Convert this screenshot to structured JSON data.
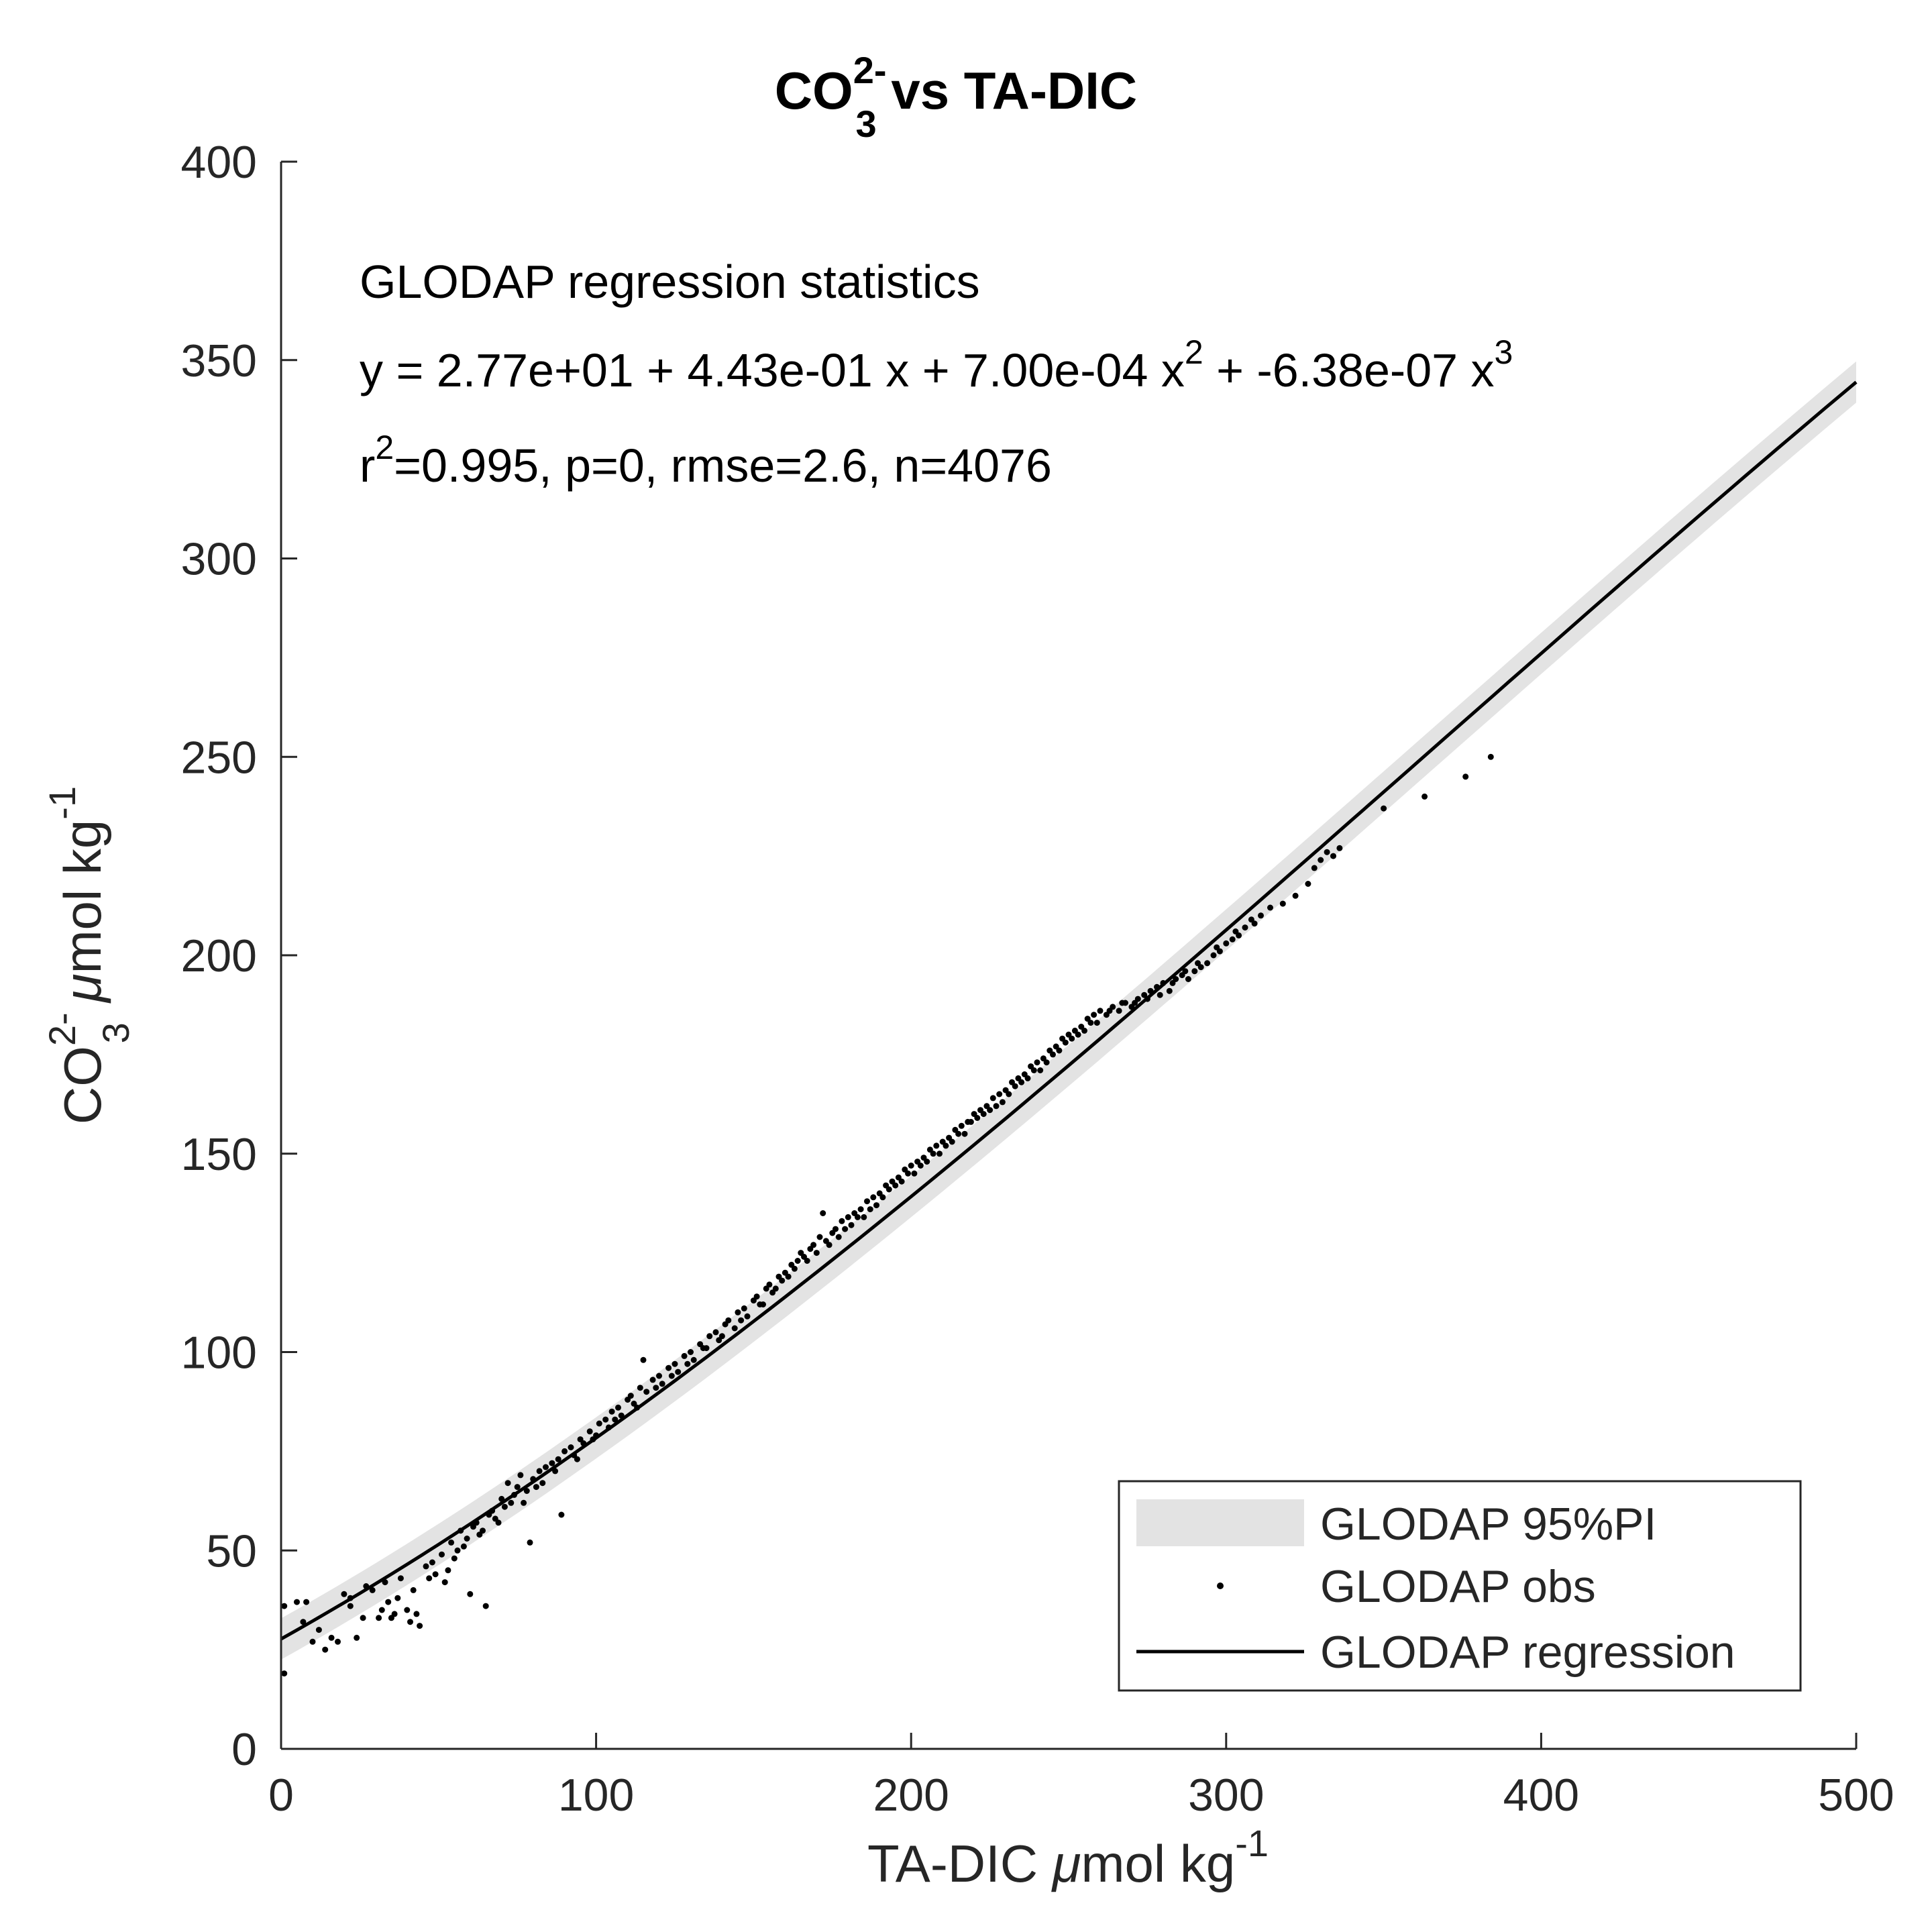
{
  "chart_data": {
    "type": "scatter",
    "title": {
      "prefix": "CO",
      "sub": "3",
      "sup": "2-",
      "suffix": " vs TA-DIC"
    },
    "xlabel": {
      "main": "TA-DIC ",
      "mu": "μ",
      "rest": "mol kg",
      "sup": "-1"
    },
    "ylabel": {
      "prefix": "CO",
      "sub": "3",
      "sup": "2-",
      "mu": "μ",
      "rest": "mol kg",
      "sup2": "-1"
    },
    "xlim": [
      0,
      500
    ],
    "ylim": [
      0,
      400
    ],
    "xticks": [
      0,
      100,
      200,
      300,
      400,
      500
    ],
    "yticks": [
      0,
      50,
      100,
      150,
      200,
      250,
      300,
      350,
      400
    ],
    "xtick_labels": [
      "0",
      "100",
      "200",
      "300",
      "400",
      "500"
    ],
    "ytick_labels": [
      "0",
      "50",
      "100",
      "150",
      "200",
      "250",
      "300",
      "350",
      "400"
    ],
    "grid": false,
    "annotation": {
      "line1": "GLODAP regression statistics",
      "line2_a": "y = 2.77e+01 + 4.43e-01 x + 7.00e-04 x",
      "line2_sup1": "2",
      "line2_b": " + -6.38e-07 x",
      "line2_sup2": "3",
      "line3_a": "r",
      "line3_sup": "2",
      "line3_b": "=0.995, p=0, rmse=2.6, n=4076"
    },
    "regression": {
      "coefficients": [
        27.7,
        0.443,
        0.0007,
        -6.38e-07
      ],
      "x_range": [
        0,
        500
      ],
      "pi_halfwidth": 5.2
    },
    "legend": {
      "position": "bottom-right",
      "entries": [
        "GLODAP 95%PI",
        "GLODAP obs",
        "GLODAP regression"
      ]
    },
    "series": [
      {
        "name": "GLODAP obs",
        "points": [
          [
            1,
            36
          ],
          [
            1,
            19
          ],
          [
            5,
            37
          ],
          [
            7,
            32
          ],
          [
            8,
            37
          ],
          [
            10,
            27
          ],
          [
            12,
            30
          ],
          [
            14,
            25
          ],
          [
            16,
            28
          ],
          [
            18,
            27
          ],
          [
            20,
            39
          ],
          [
            22,
            38
          ],
          [
            24,
            28
          ],
          [
            27,
            41
          ],
          [
            29,
            40
          ],
          [
            31,
            33
          ],
          [
            33,
            42
          ],
          [
            34,
            37
          ],
          [
            35,
            33
          ],
          [
            36,
            34
          ],
          [
            38,
            43
          ],
          [
            40,
            35
          ],
          [
            41,
            32
          ],
          [
            43,
            34
          ],
          [
            44,
            31
          ],
          [
            46,
            46
          ],
          [
            48,
            47
          ],
          [
            49,
            44
          ],
          [
            51,
            49
          ],
          [
            52,
            42
          ],
          [
            54,
            52
          ],
          [
            55,
            48
          ],
          [
            57,
            55
          ],
          [
            58,
            51
          ],
          [
            59,
            53
          ],
          [
            60,
            39
          ],
          [
            61,
            56
          ],
          [
            62,
            57
          ],
          [
            63,
            54
          ],
          [
            65,
            36
          ],
          [
            66,
            59
          ],
          [
            67,
            60
          ],
          [
            68,
            58
          ],
          [
            70,
            63
          ],
          [
            71,
            61
          ],
          [
            72,
            67
          ],
          [
            73,
            62
          ],
          [
            74,
            64
          ],
          [
            75,
            66
          ],
          [
            76,
            69
          ],
          [
            77,
            62
          ],
          [
            78,
            65
          ],
          [
            79,
            52
          ],
          [
            80,
            68
          ],
          [
            82,
            70
          ],
          [
            83,
            67
          ],
          [
            84,
            71
          ],
          [
            86,
            72
          ],
          [
            88,
            73
          ],
          [
            89,
            59
          ],
          [
            90,
            75
          ],
          [
            92,
            76
          ],
          [
            93,
            74
          ],
          [
            95,
            78
          ],
          [
            96,
            77
          ],
          [
            98,
            80
          ],
          [
            99,
            78
          ],
          [
            101,
            82
          ],
          [
            103,
            83
          ],
          [
            104,
            81
          ],
          [
            105,
            85
          ],
          [
            107,
            86
          ],
          [
            108,
            84
          ],
          [
            110,
            88
          ],
          [
            111,
            89
          ],
          [
            112,
            87
          ],
          [
            114,
            91
          ],
          [
            115,
            98
          ],
          [
            116,
            90
          ],
          [
            118,
            93
          ],
          [
            120,
            94
          ],
          [
            121,
            92
          ],
          [
            123,
            96
          ],
          [
            125,
            97
          ],
          [
            126,
            95
          ],
          [
            128,
            99
          ],
          [
            130,
            100
          ],
          [
            131,
            98
          ],
          [
            133,
            102
          ],
          [
            134,
            101
          ],
          [
            136,
            104
          ],
          [
            138,
            105
          ],
          [
            139,
            103
          ],
          [
            141,
            107
          ],
          [
            142,
            108
          ],
          [
            144,
            106
          ],
          [
            145,
            110
          ],
          [
            147,
            111
          ],
          [
            148,
            109
          ],
          [
            150,
            113
          ],
          [
            151,
            114
          ],
          [
            152,
            112
          ],
          [
            154,
            116
          ],
          [
            155,
            117
          ],
          [
            156,
            115
          ],
          [
            158,
            119
          ],
          [
            159,
            118
          ],
          [
            160,
            120
          ],
          [
            162,
            122
          ],
          [
            163,
            121
          ],
          [
            164,
            123
          ],
          [
            165,
            125
          ],
          [
            166,
            124
          ],
          [
            168,
            126
          ],
          [
            169,
            127
          ],
          [
            170,
            125
          ],
          [
            171,
            129
          ],
          [
            172,
            135
          ],
          [
            173,
            128
          ],
          [
            175,
            130
          ],
          [
            176,
            131
          ],
          [
            177,
            129
          ],
          [
            178,
            133
          ],
          [
            180,
            134
          ],
          [
            181,
            132
          ],
          [
            182,
            135
          ],
          [
            184,
            136
          ],
          [
            185,
            134
          ],
          [
            186,
            138
          ],
          [
            188,
            139
          ],
          [
            189,
            137
          ],
          [
            190,
            140
          ],
          [
            192,
            142
          ],
          [
            193,
            141
          ],
          [
            194,
            143
          ],
          [
            196,
            144
          ],
          [
            197,
            143
          ],
          [
            198,
            146
          ],
          [
            200,
            147
          ],
          [
            201,
            145
          ],
          [
            202,
            148
          ],
          [
            204,
            149
          ],
          [
            205,
            148
          ],
          [
            206,
            151
          ],
          [
            208,
            152
          ],
          [
            209,
            150
          ],
          [
            210,
            153
          ],
          [
            212,
            154
          ],
          [
            213,
            153
          ],
          [
            214,
            156
          ],
          [
            216,
            157
          ],
          [
            217,
            155
          ],
          [
            218,
            158
          ],
          [
            220,
            160
          ],
          [
            221,
            159
          ],
          [
            222,
            161
          ],
          [
            224,
            162
          ],
          [
            225,
            161
          ],
          [
            226,
            164
          ],
          [
            228,
            165
          ],
          [
            229,
            163
          ],
          [
            230,
            166
          ],
          [
            232,
            168
          ],
          [
            233,
            167
          ],
          [
            234,
            169
          ],
          [
            236,
            170
          ],
          [
            237,
            169
          ],
          [
            238,
            172
          ],
          [
            240,
            173
          ],
          [
            241,
            171
          ],
          [
            242,
            174
          ],
          [
            244,
            176
          ],
          [
            245,
            175
          ],
          [
            246,
            177
          ],
          [
            248,
            179
          ],
          [
            249,
            178
          ],
          [
            250,
            180
          ],
          [
            252,
            181
          ],
          [
            253,
            180
          ],
          [
            254,
            182
          ],
          [
            256,
            184
          ],
          [
            257,
            183
          ],
          [
            258,
            185
          ],
          [
            260,
            186
          ],
          [
            262,
            185
          ],
          [
            264,
            187
          ],
          [
            266,
            186
          ],
          [
            268,
            188
          ],
          [
            270,
            187
          ],
          [
            272,
            189
          ],
          [
            274,
            190
          ],
          [
            276,
            191
          ],
          [
            278,
            192
          ],
          [
            280,
            193
          ],
          [
            282,
            191
          ],
          [
            284,
            194
          ],
          [
            286,
            195
          ],
          [
            288,
            194
          ],
          [
            290,
            196
          ],
          [
            292,
            197
          ],
          [
            294,
            198
          ],
          [
            296,
            200
          ],
          [
            298,
            201
          ],
          [
            300,
            203
          ],
          [
            302,
            204
          ],
          [
            304,
            205
          ],
          [
            306,
            207
          ],
          [
            308,
            209
          ],
          [
            311,
            210
          ],
          [
            314,
            212
          ],
          [
            318,
            213
          ],
          [
            322,
            215
          ],
          [
            326,
            218
          ],
          [
            328,
            222
          ],
          [
            330,
            224
          ],
          [
            332,
            226
          ],
          [
            334,
            225
          ],
          [
            336,
            227
          ],
          [
            350,
            237
          ],
          [
            363,
            240
          ],
          [
            376,
            245
          ],
          [
            384,
            250
          ],
          [
            22,
            36
          ],
          [
            26,
            33
          ],
          [
            32,
            35
          ],
          [
            37,
            38
          ],
          [
            42,
            40
          ],
          [
            47,
            43
          ],
          [
            53,
            45
          ],
          [
            56,
            50
          ],
          [
            64,
            55
          ],
          [
            69,
            57
          ],
          [
            81,
            66
          ],
          [
            87,
            70
          ],
          [
            94,
            73
          ],
          [
            100,
            79
          ],
          [
            106,
            83
          ],
          [
            113,
            86
          ],
          [
            119,
            91
          ],
          [
            124,
            94
          ],
          [
            129,
            97
          ],
          [
            135,
            101
          ],
          [
            140,
            104
          ],
          [
            146,
            108
          ],
          [
            153,
            112
          ],
          [
            157,
            116
          ],
          [
            161,
            119
          ],
          [
            167,
            123
          ],
          [
            174,
            127
          ],
          [
            179,
            131
          ],
          [
            183,
            134
          ],
          [
            187,
            136
          ],
          [
            191,
            139
          ],
          [
            195,
            142
          ],
          [
            199,
            145
          ],
          [
            203,
            147
          ],
          [
            207,
            150
          ],
          [
            211,
            152
          ],
          [
            215,
            155
          ],
          [
            219,
            158
          ],
          [
            223,
            160
          ],
          [
            227,
            162
          ],
          [
            231,
            165
          ],
          [
            235,
            168
          ],
          [
            239,
            171
          ],
          [
            243,
            173
          ],
          [
            247,
            176
          ],
          [
            251,
            179
          ],
          [
            255,
            181
          ],
          [
            259,
            183
          ],
          [
            263,
            186
          ],
          [
            267,
            188
          ],
          [
            271,
            188
          ],
          [
            275,
            189
          ],
          [
            279,
            190
          ],
          [
            283,
            193
          ],
          [
            287,
            196
          ],
          [
            291,
            198
          ],
          [
            297,
            202
          ],
          [
            303,
            206
          ],
          [
            309,
            208
          ]
        ]
      }
    ]
  }
}
